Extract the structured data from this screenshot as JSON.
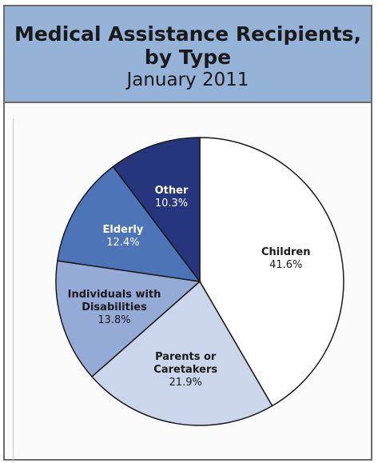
{
  "chart_data": {
    "type": "pie",
    "title": "Medical Assistance Recipients, by Type",
    "subtitle": "January 2011",
    "slices": [
      {
        "label_lines": [
          "Children"
        ],
        "value_text": "41.6%",
        "value": 41.6,
        "color": "#ffffff",
        "text_color": "#1a1a1a"
      },
      {
        "label_lines": [
          "Parents or",
          "Caretakers"
        ],
        "value_text": "21.9%",
        "value": 21.9,
        "color": "#ccd6ea",
        "text_color": "#1a1a1a"
      },
      {
        "label_lines": [
          "Individuals with",
          "Disabilities"
        ],
        "value_text": "13.8%",
        "value": 13.8,
        "color": "#94abd6",
        "text_color": "#1a1a1a"
      },
      {
        "label_lines": [
          "Elderly"
        ],
        "value_text": "12.4%",
        "value": 12.4,
        "color": "#4e74b8",
        "text_color": "#ffffff"
      },
      {
        "label_lines": [
          "Other"
        ],
        "value_text": "10.3%",
        "value": 10.3,
        "color": "#26367d",
        "text_color": "#ffffff"
      }
    ]
  }
}
